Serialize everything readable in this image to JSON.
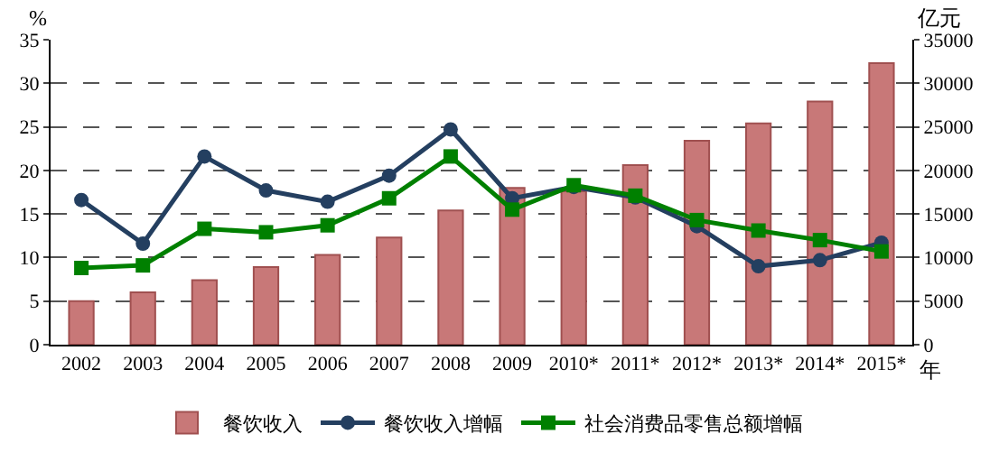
{
  "chart_data": {
    "type": "bar",
    "ylabel": "%",
    "y2label": "亿元",
    "xlabel": "年",
    "categories": [
      "2002",
      "2003",
      "2004",
      "2005",
      "2006",
      "2007",
      "2008",
      "2009",
      "2010*",
      "2011*",
      "2012*",
      "2013*",
      "2014*",
      "2015*"
    ],
    "series": [
      {
        "name": "餐饮收入",
        "axis": "y2",
        "color": "#c87878",
        "values": [
          5000,
          6000,
          7400,
          8900,
          10300,
          12300,
          15400,
          18000,
          17600,
          20600,
          23400,
          25400,
          27900,
          32300
        ]
      },
      {
        "name": "餐饮收入增幅",
        "type": "line",
        "marker": "circle",
        "color": "#243f60",
        "values": [
          16.6,
          11.6,
          21.6,
          17.7,
          16.4,
          19.4,
          24.7,
          16.8,
          18.1,
          16.9,
          13.6,
          9.0,
          9.7,
          11.7
        ]
      },
      {
        "name": "社会消费品零售总额增幅",
        "type": "line",
        "marker": "square",
        "color": "#008000",
        "values": [
          8.8,
          9.1,
          13.3,
          12.9,
          13.7,
          16.8,
          21.6,
          15.5,
          18.3,
          17.1,
          14.3,
          13.1,
          12.0,
          10.7
        ]
      }
    ],
    "ylim": [
      0,
      35
    ],
    "yticks": [
      0,
      5,
      10,
      15,
      20,
      25,
      30,
      35
    ],
    "y2lim": [
      0,
      35000
    ],
    "y2ticks": [
      0,
      5000,
      10000,
      15000,
      20000,
      25000,
      30000,
      35000
    ],
    "grid": "y",
    "legend": "bottom"
  }
}
